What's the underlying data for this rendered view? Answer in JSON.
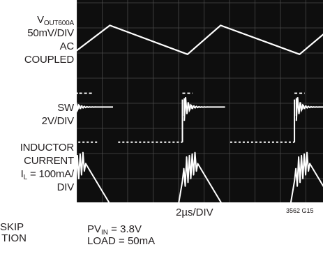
{
  "labels": {
    "vout_line1": "V",
    "vout_sub": "OUT600A",
    "vout_scale": "50mV/DIV",
    "vout_coupling_1": "AC",
    "vout_coupling_2": "COUPLED",
    "sw_name": "SW",
    "sw_scale": "2V/DIV",
    "ind_line1": "INDUCTOR",
    "ind_line2": "CURRENT",
    "ind_line3_pre": "I",
    "ind_line3_sub": "L",
    "ind_line3_post": " = 100mA/",
    "ind_line4": "DIV",
    "timebase": "2µs/DIV",
    "figure_code": "3562 G15",
    "left_fragment_1": "SKIP",
    "left_fragment_2": "TION",
    "cond_pv_pre": "PV",
    "cond_pv_sub": "IN",
    "cond_pv_post": " = 3.8V",
    "cond_load": "LOAD = 50mA"
  },
  "chart_data": {
    "type": "line",
    "title": "",
    "xlabel": "2µs/DIV",
    "x_divisions": 10,
    "y_divisions": 8,
    "grid": true,
    "background": "#0e0e0e",
    "trace_color": "#ffffff",
    "burst_period_us": 8.8,
    "burst_start_us": [
      -0.7,
      8.1,
      16.9
    ],
    "series": [
      {
        "label": "VOUT600A",
        "scale": "50mV/DIV",
        "coupling": "AC COUPLED",
        "waveform": "sawtooth",
        "ground_marker_div": 3.6,
        "points_us_div": [
          [
            -0.5,
            1.75
          ],
          [
            0.0,
            1.9
          ],
          [
            2.6,
            0.9
          ],
          [
            8.7,
            2.05
          ],
          [
            11.3,
            0.9
          ],
          [
            17.5,
            2.05
          ],
          [
            20.2,
            0.9
          ],
          [
            22.0,
            1.25
          ]
        ]
      },
      {
        "label": "SW",
        "scale": "2V/DIV",
        "waveform": "pulse-burst",
        "baseline_div": 5.55,
        "high_div": 4.15,
        "burst_duration_us": 1.1,
        "ringing": true
      },
      {
        "label": "INDUCTOR CURRENT IL",
        "scale": "100mA/DIV",
        "waveform": "triangular-burst",
        "zero_div": 8.0,
        "peak_div": 6.2,
        "pulses_per_burst": 5,
        "tail_to_zero_us": 1.9
      }
    ]
  }
}
